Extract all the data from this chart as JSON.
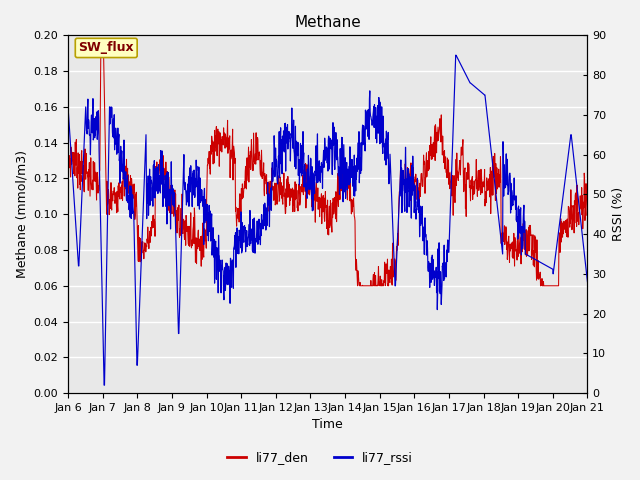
{
  "title": "Methane",
  "xlabel": "Time",
  "ylabel_left": "Methane (mmol/m3)",
  "ylabel_right": "RSSI (%)",
  "ylim_left": [
    0.0,
    0.2
  ],
  "ylim_right": [
    0,
    90
  ],
  "yticks_left": [
    0.0,
    0.02,
    0.04,
    0.06,
    0.08,
    0.1,
    0.12,
    0.14,
    0.16,
    0.18,
    0.2
  ],
  "yticks_right": [
    0,
    10,
    20,
    30,
    40,
    50,
    60,
    70,
    80,
    90
  ],
  "xtick_labels": [
    "Jan 6",
    "Jan 7",
    "Jan 8",
    "Jan 9",
    "Jan 10",
    "Jan 11",
    "Jan 12",
    "Jan 13",
    "Jan 14",
    "Jan 15",
    "Jan 16",
    "Jan 17",
    "Jan 18",
    "Jan 19",
    "Jan 20",
    "Jan 21"
  ],
  "legend_labels": [
    "li77_den",
    "li77_rssi"
  ],
  "line_color_red": "#cc0000",
  "line_color_blue": "#0000cc",
  "annotation_text": "SW_flux",
  "annotation_bg": "#ffffc0",
  "annotation_border": "#b8a000",
  "background_color": "#e8e8e8",
  "outer_bg": "#f2f2f2",
  "grid_color": "#ffffff",
  "title_fontsize": 11,
  "axis_label_fontsize": 9,
  "tick_fontsize": 8
}
